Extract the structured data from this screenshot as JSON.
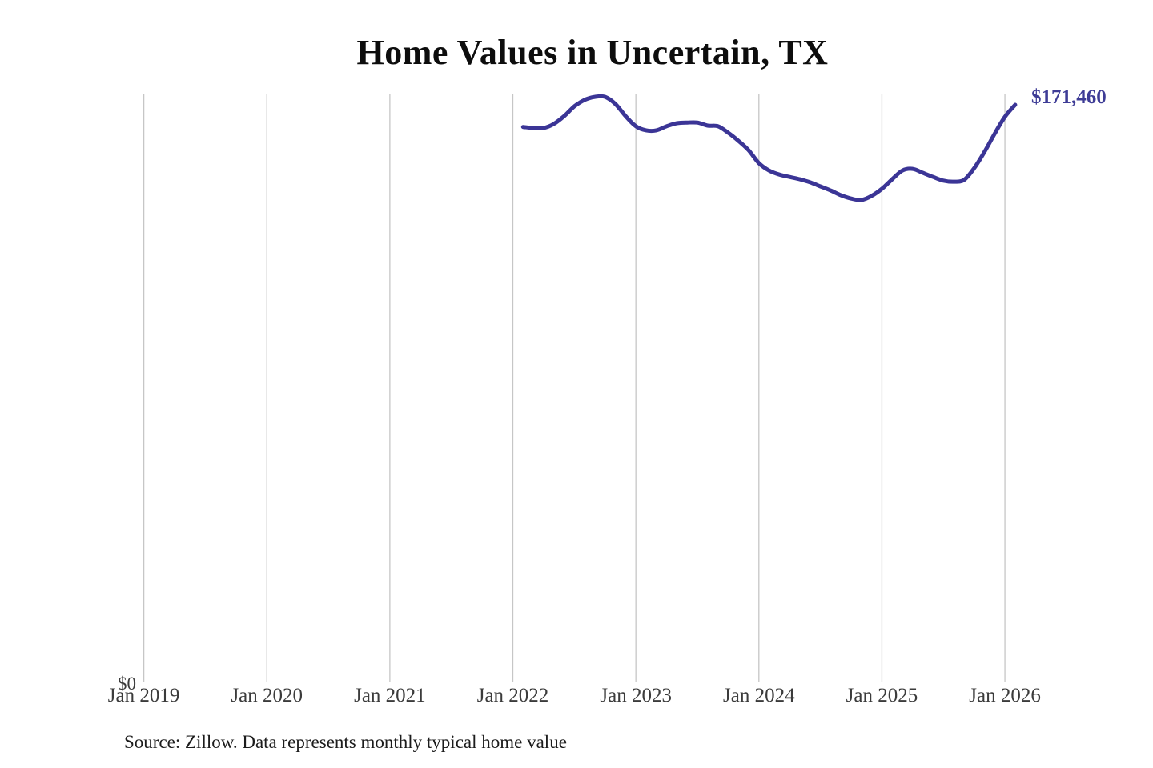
{
  "chart_data": {
    "type": "line",
    "title": "Home Values in Uncertain, TX",
    "end_label": "$171,460",
    "x_tick_labels": [
      "Jan 2019",
      "Jan 2020",
      "Jan 2021",
      "Jan 2022",
      "Jan 2023",
      "Jan 2024",
      "Jan 2025",
      "Jan 2026"
    ],
    "y_tick_labels": [
      "$0"
    ],
    "xlim": [
      "Jan 2019",
      "Feb 2026"
    ],
    "ylim": [
      0,
      175000
    ],
    "grid": "vertical-gridlines-only",
    "legend": "none",
    "line_color": "#3b3596",
    "label_color": "#3e3c96",
    "grid_color": "#c6c6c6",
    "tick_color": "#3b3b3b",
    "series": [
      {
        "x": [
          "Feb 2022",
          "Mar 2022",
          "Apr 2022",
          "May 2022",
          "Jun 2022",
          "Jul 2022",
          "Aug 2022",
          "Sep 2022",
          "Oct 2022",
          "Nov 2022",
          "Dec 2022",
          "Jan 2023",
          "Feb 2023",
          "Mar 2023",
          "Apr 2023",
          "May 2023",
          "Jun 2023",
          "Jul 2023",
          "Aug 2023",
          "Sep 2023",
          "Oct 2023",
          "Nov 2023",
          "Dec 2023",
          "Jan 2024",
          "Feb 2024",
          "Mar 2024",
          "Apr 2024",
          "May 2024",
          "Jun 2024",
          "Jul 2024",
          "Aug 2024",
          "Sep 2024",
          "Oct 2024",
          "Nov 2024",
          "Dec 2024",
          "Jan 2025",
          "Feb 2025",
          "Mar 2025",
          "Apr 2025",
          "May 2025",
          "Jun 2025",
          "Jul 2025",
          "Aug 2025",
          "Sep 2025",
          "Oct 2025",
          "Nov 2025",
          "Dec 2025",
          "Jan 2026",
          "Feb 2026"
        ],
        "values": [
          164900,
          164600,
          164600,
          165800,
          168100,
          171000,
          172900,
          173800,
          173800,
          171700,
          168100,
          165100,
          163900,
          163900,
          165100,
          166000,
          166200,
          166200,
          165300,
          165100,
          163200,
          160800,
          158000,
          154200,
          152000,
          150800,
          150100,
          149400,
          148500,
          147300,
          146100,
          144700,
          143700,
          143300,
          144500,
          146600,
          149400,
          152000,
          152500,
          151300,
          150100,
          149000,
          148700,
          149200,
          152700,
          157500,
          162900,
          167900,
          171460
        ]
      }
    ]
  },
  "source_note": "Source: Zillow. Data represents monthly typical home value"
}
